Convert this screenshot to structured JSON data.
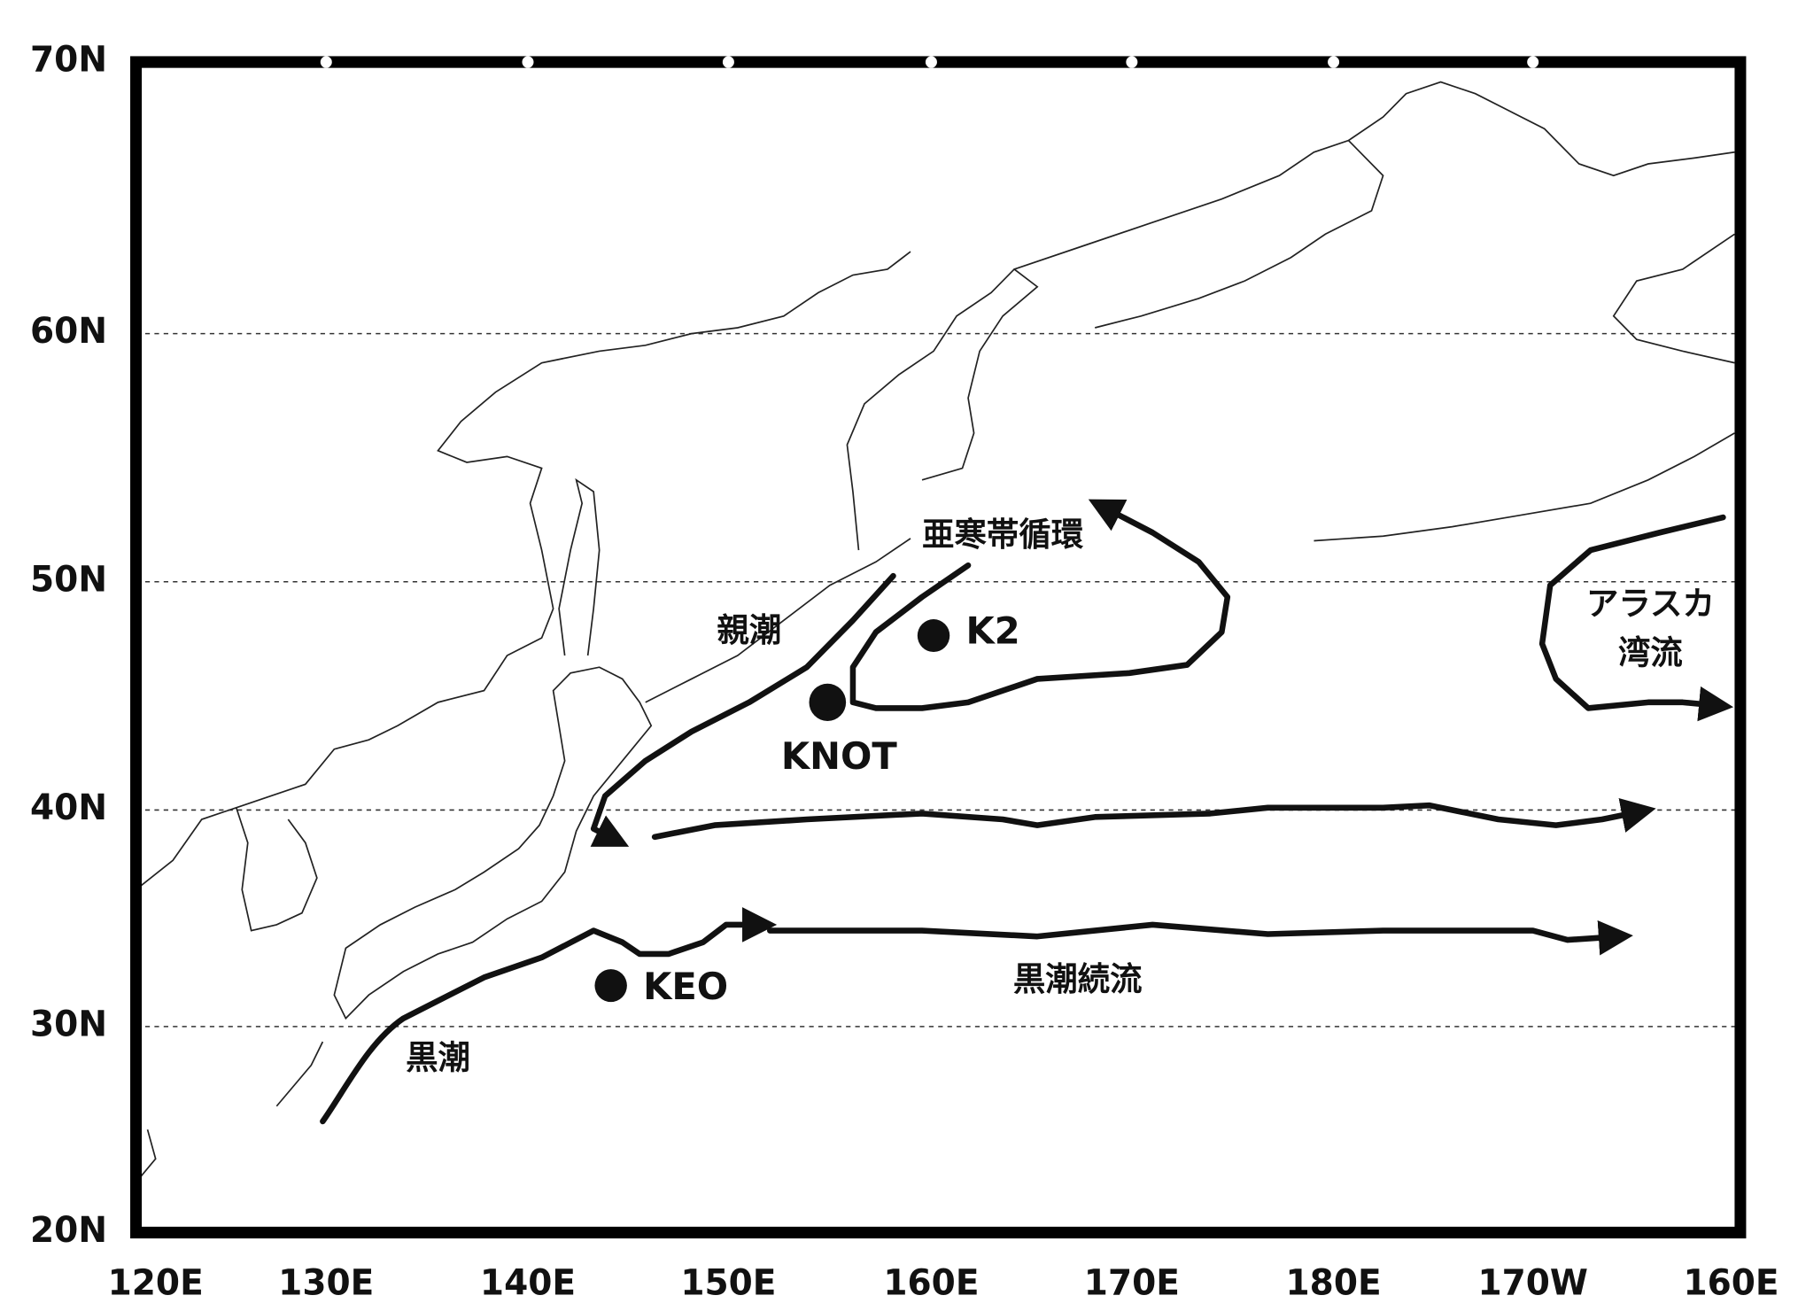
{
  "map": {
    "x_axis": {
      "ticks": [
        "120E",
        "130E",
        "140E",
        "150E",
        "160E",
        "170E",
        "180E",
        "170W",
        "160E"
      ]
    },
    "y_axis": {
      "ticks": [
        "70N",
        "60N",
        "50N",
        "40N",
        "30N",
        "20N"
      ]
    },
    "current_labels": [
      "亜寒帯循環",
      "親潮",
      "黒潮続流",
      "黒潮",
      "アラスカ",
      "湾流"
    ],
    "stations": [
      "K2",
      "KNOT",
      "KEO"
    ]
  }
}
